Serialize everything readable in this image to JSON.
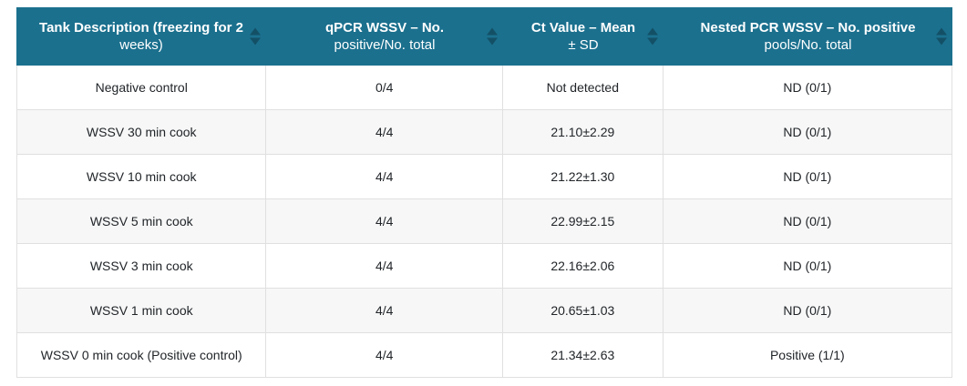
{
  "theme": {
    "header_bg": "#1b708e",
    "header_text": "#ffffff",
    "sort_icon_color": "rgba(0,0,0,0.28)",
    "row_bg": "#ffffff",
    "row_alt_bg": "#f7f7f7",
    "border_color": "#e0e0e0",
    "body_text": "#212529"
  },
  "table": {
    "columns": [
      {
        "title": "Tank Description (freezing for 2",
        "subtitle": "weeks)"
      },
      {
        "title": "qPCR WSSV – No.",
        "subtitle": "positive/No. total"
      },
      {
        "title": "Ct Value – Mean",
        "subtitle": "± SD"
      },
      {
        "title": "Nested PCR WSSV – No. positive",
        "subtitle": "pools/No. total"
      }
    ],
    "rows": [
      [
        "Negative control",
        "0/4",
        "Not detected",
        "ND (0/1)"
      ],
      [
        "WSSV 30 min cook",
        "4/4",
        "21.10±2.29",
        "ND (0/1)"
      ],
      [
        "WSSV 10 min cook",
        "4/4",
        "21.22±1.30",
        "ND (0/1)"
      ],
      [
        "WSSV 5 min cook",
        "4/4",
        "22.99±2.15",
        "ND (0/1)"
      ],
      [
        "WSSV 3 min cook",
        "4/4",
        "22.16±2.06",
        "ND (0/1)"
      ],
      [
        "WSSV 1 min cook",
        "4/4",
        "20.65±1.03",
        "ND (0/1)"
      ],
      [
        "WSSV 0 min cook (Positive control)",
        "4/4",
        "21.34±2.63",
        "Positive (1/1)"
      ]
    ]
  }
}
